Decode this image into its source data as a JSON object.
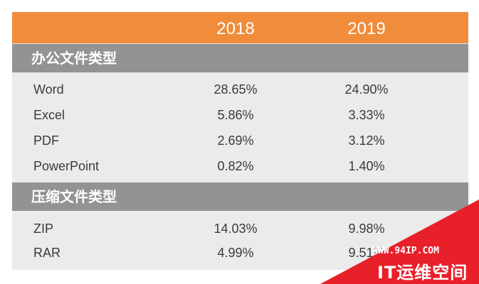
{
  "chart_data": {
    "type": "table",
    "columns": [
      "",
      "2018",
      "2019"
    ],
    "sections": [
      {
        "title": "办公文件类型",
        "rows": [
          {
            "name": "Word",
            "values": [
              "28.65%",
              "24.90%"
            ]
          },
          {
            "name": "Excel",
            "values": [
              "5.86%",
              "3.33%"
            ]
          },
          {
            "name": "PDF",
            "values": [
              "2.69%",
              "3.12%"
            ]
          },
          {
            "name": "PowerPoint",
            "values": [
              "0.82%",
              "1.40%"
            ]
          }
        ]
      },
      {
        "title": "压缩文件类型",
        "rows": [
          {
            "name": "ZIP",
            "values": [
              "14.03%",
              "9.98%"
            ]
          },
          {
            "name": "RAR",
            "values": [
              "4.99%",
              "9.51%"
            ]
          }
        ]
      }
    ]
  },
  "watermark": {
    "url": "WWW.94IP.COM",
    "brand": "IT运维空间"
  },
  "colors": {
    "header": "#f08c3a",
    "section": "#939395",
    "body": "#ebebeb",
    "watermark": "#e8202a"
  }
}
